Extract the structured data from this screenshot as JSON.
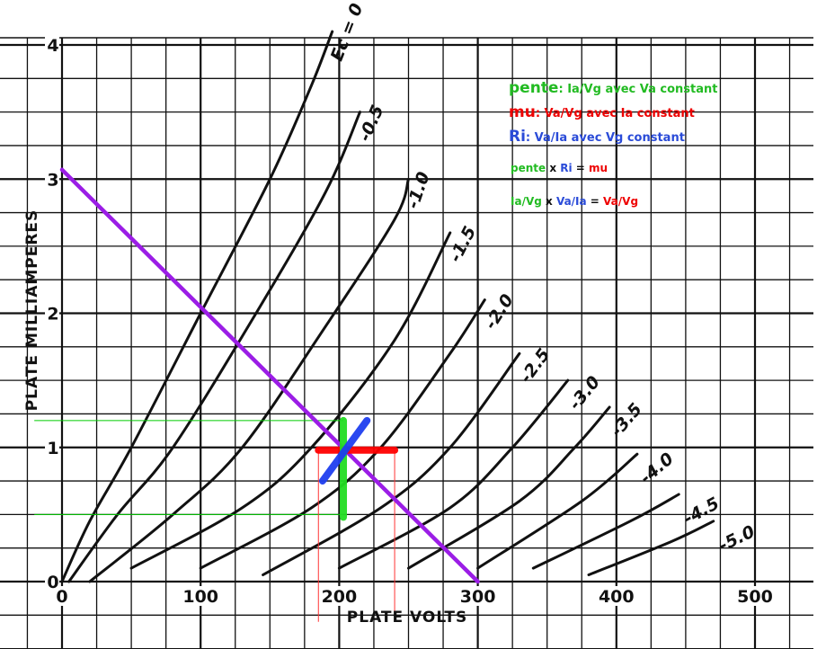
{
  "chart_data": {
    "type": "line",
    "xlabel": "PLATE VOLTS",
    "ylabel": "PLATE MILLIAMPERES",
    "xlim": [
      0,
      500
    ],
    "ylim": [
      0,
      4
    ],
    "x_ticks": [
      "0",
      "100",
      "200",
      "300",
      "400",
      "500"
    ],
    "y_ticks": [
      "0",
      "1",
      "2",
      "3",
      "4"
    ],
    "grid": true,
    "curve_label_prefix": "Ec = ",
    "series": [
      {
        "name": "0",
        "points": [
          [
            0,
            0
          ],
          [
            20,
            0.45
          ],
          [
            50,
            1.0
          ],
          [
            100,
            2.0
          ],
          [
            150,
            3.0
          ],
          [
            180,
            3.7
          ],
          [
            195,
            4.1
          ]
        ]
      },
      {
        "name": "-0.5",
        "points": [
          [
            5,
            0
          ],
          [
            40,
            0.5
          ],
          [
            80,
            1.0
          ],
          [
            140,
            2.0
          ],
          [
            190,
            2.9
          ],
          [
            215,
            3.5
          ]
        ]
      },
      {
        "name": "-1.0",
        "points": [
          [
            20,
            0
          ],
          [
            80,
            0.5
          ],
          [
            130,
            1.0
          ],
          [
            190,
            1.9
          ],
          [
            240,
            2.7
          ],
          [
            250,
            3.0
          ]
        ]
      },
      {
        "name": "-1.5",
        "points": [
          [
            50,
            0.1
          ],
          [
            130,
            0.55
          ],
          [
            180,
            1.0
          ],
          [
            240,
            1.8
          ],
          [
            280,
            2.6
          ]
        ]
      },
      {
        "name": "-2.0",
        "points": [
          [
            100,
            0.1
          ],
          [
            180,
            0.55
          ],
          [
            230,
            1.0
          ],
          [
            280,
            1.7
          ],
          [
            305,
            2.1
          ]
        ]
      },
      {
        "name": "-2.5",
        "points": [
          [
            145,
            0.05
          ],
          [
            230,
            0.55
          ],
          [
            280,
            1.0
          ],
          [
            330,
            1.7
          ]
        ]
      },
      {
        "name": "-3.0",
        "points": [
          [
            200,
            0.1
          ],
          [
            280,
            0.55
          ],
          [
            325,
            1.0
          ],
          [
            365,
            1.5
          ]
        ]
      },
      {
        "name": "-3.5",
        "points": [
          [
            250,
            0.1
          ],
          [
            330,
            0.6
          ],
          [
            370,
            1.0
          ],
          [
            395,
            1.3
          ]
        ]
      },
      {
        "name": "-4.0",
        "points": [
          [
            300,
            0.1
          ],
          [
            375,
            0.6
          ],
          [
            415,
            0.95
          ]
        ]
      },
      {
        "name": "-4.5",
        "points": [
          [
            340,
            0.1
          ],
          [
            410,
            0.45
          ],
          [
            445,
            0.65
          ]
        ]
      },
      {
        "name": "-5.0",
        "points": [
          [
            380,
            0.05
          ],
          [
            440,
            0.3
          ],
          [
            470,
            0.45
          ]
        ]
      }
    ],
    "load_line": {
      "color": "#9b1de6",
      "points": [
        [
          0,
          3.07
        ],
        [
          300,
          0
        ]
      ]
    },
    "operating_point": {
      "x": 205,
      "y": 0.98
    },
    "markers": [
      {
        "name": "mu",
        "color": "#ff0000",
        "points": [
          [
            185,
            0.98
          ],
          [
            240,
            0.98
          ]
        ]
      },
      {
        "name": "pente",
        "color": "#22dd22",
        "points": [
          [
            203,
            1.2
          ],
          [
            203,
            0.48
          ]
        ]
      },
      {
        "name": "Ri",
        "color": "#1f3ff0",
        "points": [
          [
            188,
            0.75
          ],
          [
            220,
            1.2
          ]
        ]
      }
    ],
    "guides": [
      {
        "color": "#00cc00",
        "points": [
          [
            -20,
            1.2
          ],
          [
            203,
            1.2
          ]
        ]
      },
      {
        "color": "#00cc00",
        "points": [
          [
            -20,
            0.5
          ],
          [
            203,
            0.5
          ]
        ]
      },
      {
        "color": "#ff3333",
        "points": [
          [
            185,
            0.98
          ],
          [
            185,
            -0.3
          ]
        ]
      },
      {
        "color": "#ff3333",
        "points": [
          [
            240,
            0.98
          ],
          [
            240,
            -0.3
          ]
        ]
      }
    ]
  },
  "annotations": {
    "line1": {
      "term": "pente",
      "rest": ": Ia/Vg avec Va constant",
      "color": "#22bb22"
    },
    "line2": {
      "term": "mu",
      "rest": ": Va/Vg avec Ia constant",
      "color": "#ee0000"
    },
    "line3": {
      "term": "Ri",
      "rest": ": Va/Ia avec Vg constant",
      "color": "#2a4bd8"
    },
    "line4": {
      "a": "pente",
      "x": " x ",
      "b": "Ri",
      "eq": " = ",
      "c": "mu"
    },
    "line5": {
      "a": "Ia/Vg",
      "x": " x ",
      "b": "Va/Ia",
      "eq": " = ",
      "c": "Va/Vg"
    },
    "colors": {
      "green": "#22bb22",
      "red": "#ee0000",
      "blue": "#2a4bd8",
      "black": "#111111"
    }
  }
}
